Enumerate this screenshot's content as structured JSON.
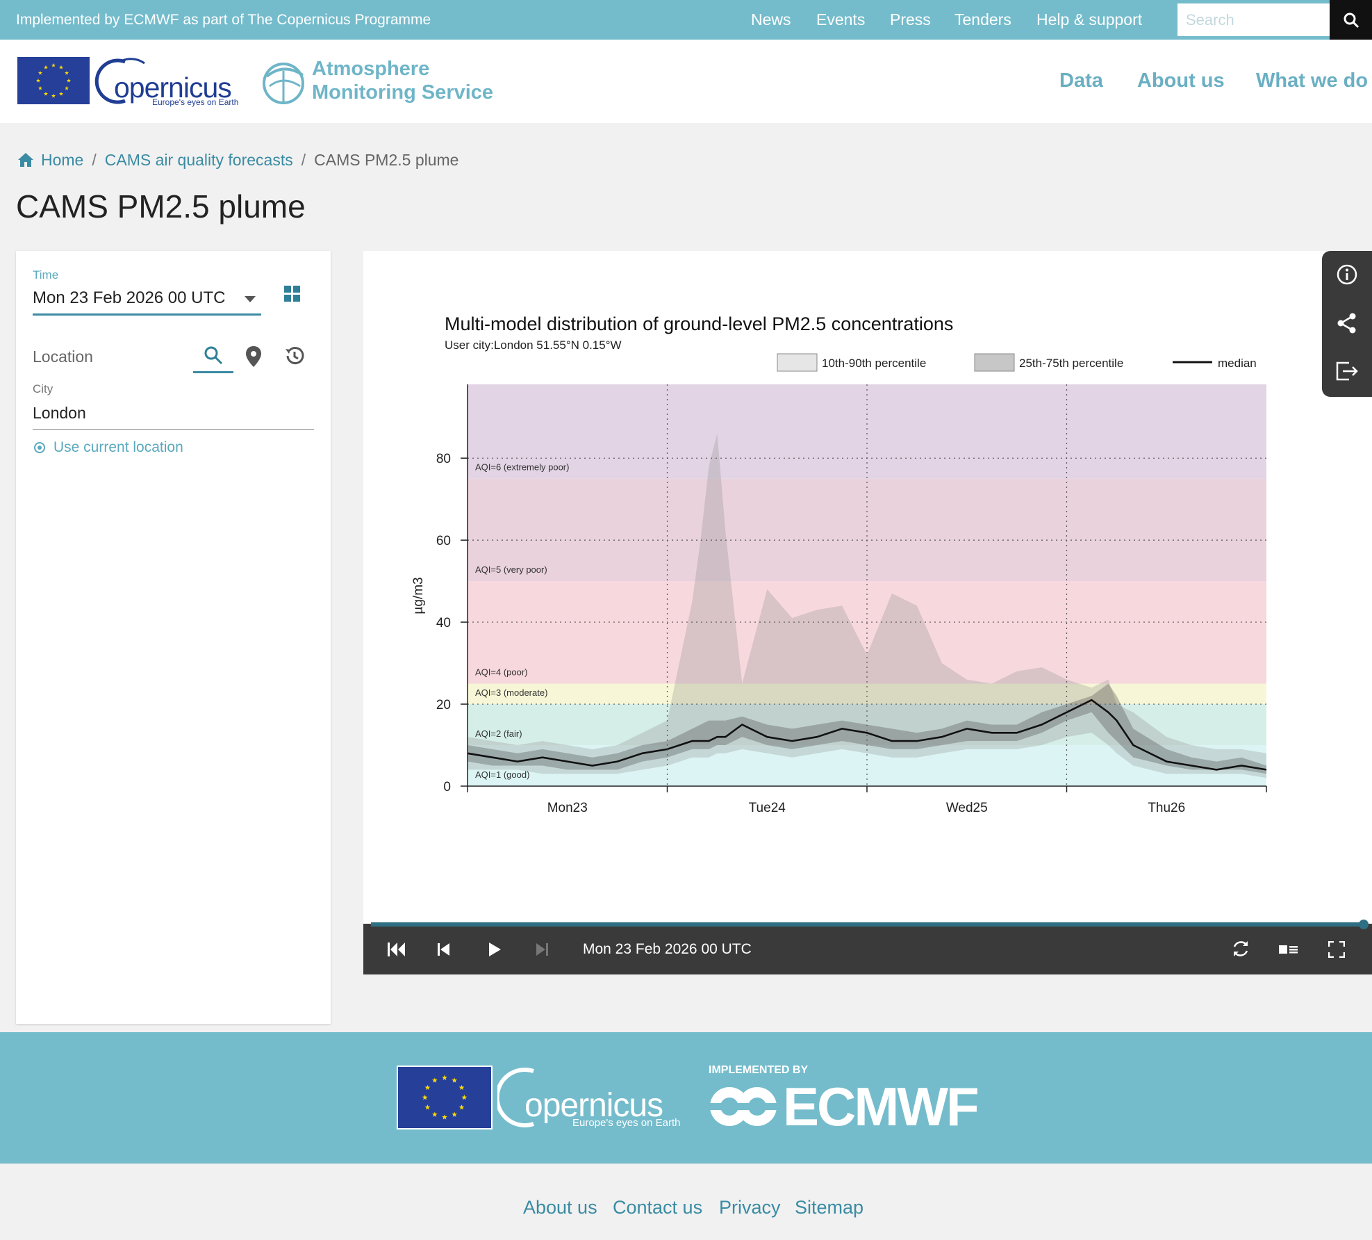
{
  "topbar": {
    "implemented": "Implemented by ECMWF as part of The Copernicus Programme",
    "links": [
      "News",
      "Events",
      "Press",
      "Tenders",
      "Help & support"
    ],
    "search_placeholder": "Search"
  },
  "header": {
    "copernicus_text": "opernicus",
    "copernicus_tagline": "Europe's eyes on Earth",
    "service_line1": "Atmosphere",
    "service_line2": "Monitoring Service",
    "nav": [
      "Data",
      "About us",
      "What we do"
    ]
  },
  "breadcrumb": {
    "home": "Home",
    "parent": "CAMS air quality forecasts",
    "current": "CAMS PM2.5 plume"
  },
  "page_title": "CAMS PM2.5 plume",
  "panel": {
    "time_label": "Time",
    "time_value": "Mon 23 Feb 2026 00 UTC",
    "location_label": "Location",
    "city_label": "City",
    "city_value": "London",
    "use_location": "Use current location"
  },
  "player": {
    "timestamp": "Mon 23 Feb 2026 00 UTC"
  },
  "footer": {
    "copernicus_text": "opernicus",
    "copernicus_tagline": "Europe's eyes on Earth",
    "implemented_by": "IMPLEMENTED BY",
    "ecmwf": "ECMWF",
    "links": [
      "About us",
      "Contact us",
      "Privacy",
      "Sitemap"
    ]
  },
  "colors": {
    "accent": "#74bccc",
    "link": "#3a8ba3",
    "dark_bar": "#3a3a3a",
    "eu_blue": "#263f99"
  },
  "chart_data": {
    "type": "area",
    "title": "Multi-model distribution of ground-level PM2.5 concentrations",
    "subtitle": "User city:London 51.55°N 0.15°W",
    "ylabel": "µg/m3",
    "xlabel": "",
    "ylim": [
      0,
      98
    ],
    "xlim": [
      0,
      96
    ],
    "yticks": [
      0,
      20,
      40,
      60,
      80
    ],
    "xticks": [
      {
        "x": 12,
        "label": "Mon23"
      },
      {
        "x": 36,
        "label": "Tue24"
      },
      {
        "x": 60,
        "label": "Wed25"
      },
      {
        "x": 84,
        "label": "Thu26"
      }
    ],
    "day_lines": [
      24,
      48,
      72
    ],
    "legend": [
      "10th-90th percentile",
      "25th-75th percentile",
      "median"
    ],
    "legend_position": "top-right",
    "aqi_bands": [
      {
        "label": "AQI=1 (good)",
        "from": 0,
        "to": 10,
        "color": "#dcf4f4"
      },
      {
        "label": "AQI=2 (fair)",
        "from": 10,
        "to": 20,
        "color": "#d6eee8"
      },
      {
        "label": "AQI=3 (moderate)",
        "from": 20,
        "to": 25,
        "color": "#f7f6d6"
      },
      {
        "label": "AQI=4 (poor)",
        "from": 25,
        "to": 50,
        "color": "#f6d8dd"
      },
      {
        "label": "AQI=5 (very poor)",
        "from": 50,
        "to": 75,
        "color": "#e9d2dc"
      },
      {
        "label": "AQI=6 (extremely poor)",
        "from": 75,
        "to": 98,
        "color": "#e2d4e4"
      }
    ],
    "x": [
      0,
      3,
      6,
      9,
      12,
      15,
      18,
      21,
      24,
      27,
      28,
      29,
      30,
      31,
      33,
      36,
      39,
      42,
      45,
      48,
      51,
      54,
      57,
      60,
      63,
      66,
      69,
      72,
      75,
      77,
      78,
      80,
      84,
      87,
      90,
      93,
      96
    ],
    "series": [
      {
        "name": "median",
        "values": [
          8,
          7,
          6,
          7,
          6,
          5,
          6,
          8,
          9,
          11,
          11,
          11,
          12,
          12,
          15,
          12,
          11,
          12,
          14,
          13,
          11,
          11,
          12,
          14,
          13,
          13,
          15,
          18,
          21,
          18,
          16,
          10,
          6,
          5,
          4,
          5,
          4
        ]
      },
      {
        "name": "25th-75th percentile",
        "low": [
          6,
          5,
          5,
          5,
          4,
          4,
          4,
          6,
          7,
          9,
          9,
          9,
          10,
          10,
          12,
          10,
          9,
          10,
          11,
          10,
          9,
          9,
          10,
          11,
          11,
          11,
          13,
          16,
          18,
          13,
          11,
          7,
          5,
          4,
          4,
          4,
          3
        ],
        "high": [
          10,
          9,
          8,
          9,
          8,
          7,
          8,
          10,
          11,
          14,
          15,
          16,
          16,
          16,
          17,
          15,
          14,
          15,
          16,
          15,
          14,
          13,
          14,
          16,
          15,
          15,
          18,
          20,
          22,
          25,
          22,
          14,
          9,
          7,
          6,
          7,
          5
        ]
      },
      {
        "name": "10th-90th percentile",
        "low": [
          4,
          4,
          4,
          3,
          3,
          3,
          3,
          4,
          5,
          7,
          7,
          7,
          8,
          8,
          9,
          8,
          7,
          8,
          9,
          8,
          7,
          7,
          8,
          9,
          9,
          9,
          10,
          12,
          13,
          10,
          8,
          5,
          3,
          3,
          3,
          3,
          2
        ],
        "high": [
          12,
          11,
          10,
          11,
          10,
          9,
          10,
          13,
          16,
          45,
          60,
          78,
          86,
          62,
          25,
          48,
          41,
          43,
          44,
          32,
          47,
          44,
          30,
          26,
          25,
          28,
          29,
          26,
          24,
          26,
          20,
          18,
          12,
          10,
          9,
          9,
          8
        ]
      }
    ]
  }
}
